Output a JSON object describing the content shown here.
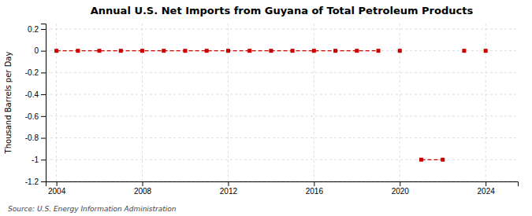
{
  "chart_data": {
    "type": "line",
    "title": "Annual U.S. Net Imports from Guyana of Total Petroleum Products",
    "ylabel": "Thousand Barrels per Day",
    "annotations": [
      "Source: U.S. Energy Information Administration"
    ],
    "x": [
      2004,
      2005,
      2006,
      2007,
      2008,
      2009,
      2010,
      2011,
      2012,
      2013,
      2014,
      2015,
      2016,
      2017,
      2018,
      2019,
      2020,
      2021,
      2022,
      2023,
      2024
    ],
    "series": [
      {
        "type": "line",
        "line_style": "dashed",
        "color": "#cc0000",
        "values": [
          0,
          0,
          0,
          0,
          0,
          0,
          0,
          0,
          0,
          0,
          0,
          0,
          0,
          0,
          0,
          0,
          null,
          -1.0,
          -1.0,
          null,
          null
        ]
      },
      {
        "type": "scatter",
        "marker": "square",
        "color": "#cc0000",
        "values": [
          0,
          0,
          0,
          0,
          0,
          0,
          0,
          0,
          0,
          0,
          0,
          0,
          0,
          0,
          0,
          0,
          0,
          -1.0,
          -1.0,
          0,
          0
        ]
      }
    ],
    "xlim": [
      2003.5,
      2025.5
    ],
    "ylim": [
      -1.2,
      0.25
    ],
    "xticks": [
      2004,
      2008,
      2012,
      2016,
      2020,
      2024
    ],
    "yticks": [
      0.2,
      0,
      -0.2,
      -0.4,
      -0.6,
      -0.8,
      -1,
      -1.2
    ],
    "grid": true
  }
}
